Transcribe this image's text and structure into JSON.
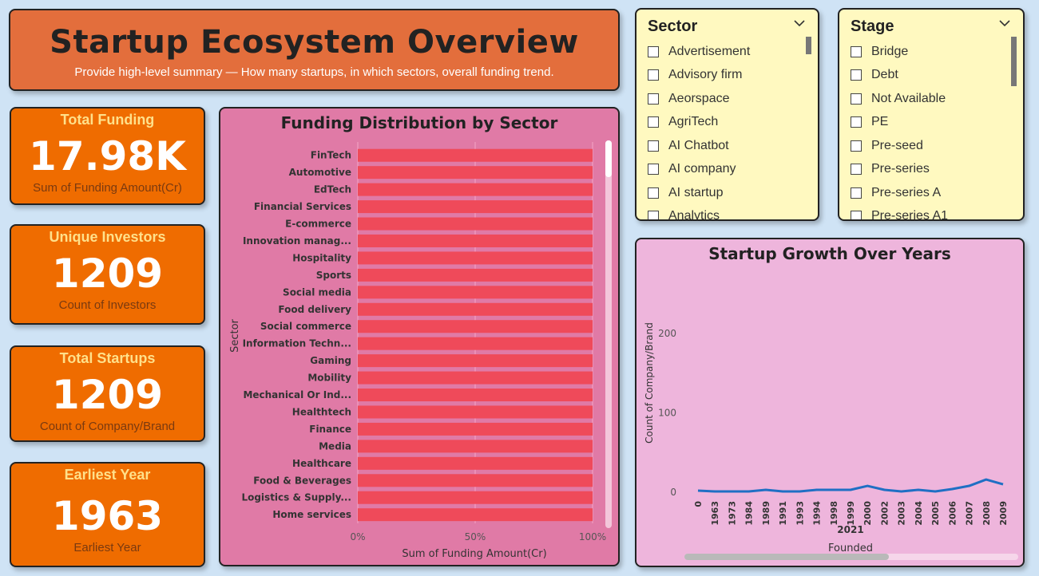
{
  "header": {
    "title": "Startup Ecosystem Overview",
    "subtitle": "Provide high-level summary — How many startups, in which sectors, overall funding trend."
  },
  "kpis": [
    {
      "title": "Total Funding",
      "value": "17.98K",
      "sub": "Sum of Funding Amount(Cr)"
    },
    {
      "title": "Unique Investors",
      "value": "1209",
      "sub": "Count of Investors"
    },
    {
      "title": "Total Startups",
      "value": "1209",
      "sub": "Count of Company/Brand"
    },
    {
      "title": "Earliest Year",
      "value": "1963",
      "sub": "Earliest Year"
    }
  ],
  "colors": {
    "bar": "#ef4a5a",
    "line": "#1f6fc4",
    "kpi_bg": "#ef6c00",
    "header_bg": "#e36e3c",
    "slicer_bg": "#fff9c0"
  },
  "slicers": {
    "sector": {
      "title": "Sector",
      "icon": "chevron-down-icon",
      "items": [
        "Advertisement",
        "Advisory firm",
        "Aeorspace",
        "AgriTech",
        "AI Chatbot",
        "AI company",
        "AI startup",
        "Analytics"
      ]
    },
    "stage": {
      "title": "Stage",
      "icon": "chevron-down-icon",
      "items": [
        "Bridge",
        "Debt",
        "Not Available",
        "PE",
        "Pre-seed",
        "Pre-series",
        "Pre-series A",
        "Pre-series A1"
      ]
    }
  },
  "chart_data": [
    {
      "type": "bar",
      "orientation": "horizontal",
      "stacked_percent": true,
      "title": "Funding Distribution by Sector",
      "xlabel": "Sum of Funding Amount(Cr)",
      "ylabel": "Sector",
      "xticks": [
        "0%",
        "50%",
        "100%"
      ],
      "xlim": [
        0,
        100
      ],
      "categories": [
        "FinTech",
        "Automotive",
        "EdTech",
        "Financial Services",
        "E-commerce",
        "Innovation manag...",
        "Hospitality",
        "Sports",
        "Social media",
        "Food delivery",
        "Social commerce",
        "Information Techn...",
        "Gaming",
        "Mobility",
        "Mechanical Or Ind...",
        "Healthtech",
        "Finance",
        "Media",
        "Healthcare",
        "Food & Beverages",
        "Logistics & Supply...",
        "Home services"
      ],
      "values": [
        100,
        100,
        100,
        100,
        100,
        100,
        100,
        100,
        100,
        100,
        100,
        100,
        100,
        100,
        100,
        100,
        100,
        100,
        100,
        100,
        100,
        100
      ],
      "grid": true
    },
    {
      "type": "line",
      "title": "Startup Growth Over Years",
      "xlabel": "Founded",
      "ylabel": "Count of Company/Brand",
      "yticks": [
        "0",
        "100",
        "200"
      ],
      "ylim": [
        0,
        220
      ],
      "x": [
        "0",
        "1963",
        "1973",
        "1984",
        "1989",
        "1991",
        "1993",
        "1994",
        "1998",
        "1999",
        "2000",
        "2002",
        "2003",
        "2004",
        "2005",
        "2006",
        "2007",
        "2008",
        "2009"
      ],
      "x_group_label": "2021",
      "values": [
        2,
        1,
        1,
        1,
        3,
        1,
        1,
        3,
        3,
        3,
        8,
        3,
        1,
        3,
        1,
        4,
        8,
        16,
        10
      ],
      "grid": false
    }
  ]
}
